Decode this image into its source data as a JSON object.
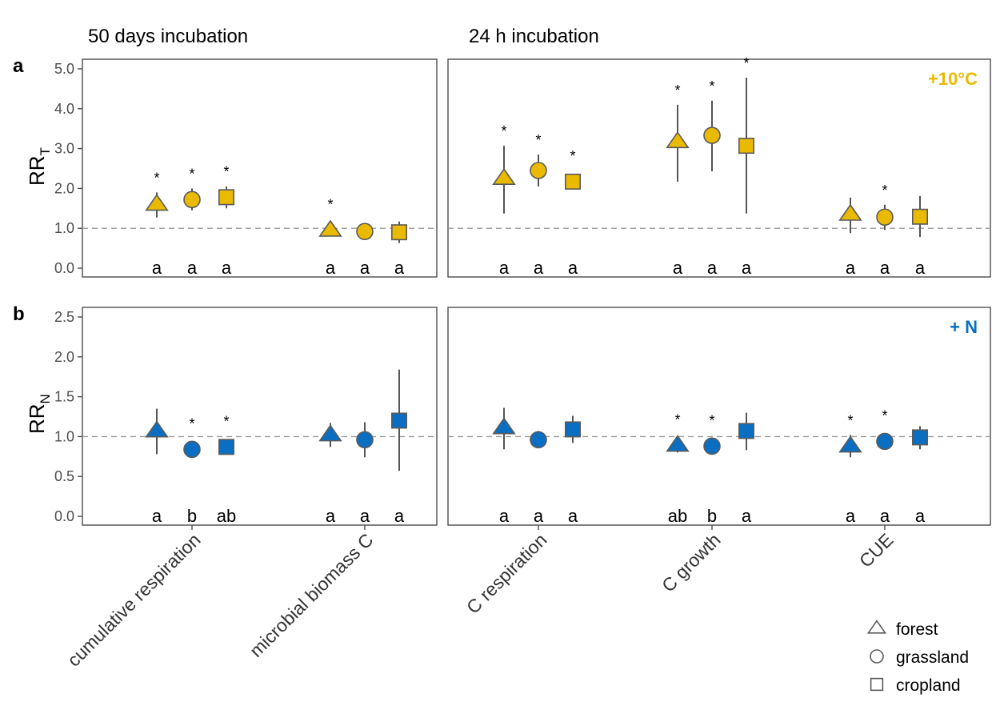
{
  "chart_data": [
    {
      "type": "scatter",
      "panel_label": "a",
      "ylabel_main": "RR",
      "ylabel_sub": "T",
      "treatment_label": "+10°C",
      "color": "#E9BA00",
      "ylim": [
        -0.2,
        5.2
      ],
      "yticks": [
        "0.0",
        "1.0",
        "2.0",
        "3.0",
        "4.0",
        "5.0"
      ],
      "ytick_values": [
        0,
        1,
        2,
        3,
        4,
        5
      ],
      "reference_line": 1.0,
      "groups": [
        "50 days incubation",
        "24 h incubation"
      ],
      "categories": [
        "cumulative respiration",
        "microbial biomass C",
        "C respiration",
        "C growth",
        "CUE"
      ],
      "category_group": [
        0,
        0,
        1,
        1,
        1
      ],
      "series": [
        {
          "name": "forest",
          "shape": "triangle",
          "values": [
            1.6,
            0.95,
            2.25,
            3.17,
            1.35
          ],
          "lower": [
            1.27,
            0.95,
            1.37,
            2.17,
            0.88
          ],
          "upper": [
            1.9,
            0.95,
            3.07,
            4.1,
            1.77
          ],
          "significant": [
            true,
            true,
            true,
            true,
            false
          ],
          "letters": [
            "a",
            "a",
            "a",
            "a",
            "a"
          ]
        },
        {
          "name": "grassland",
          "shape": "circle",
          "values": [
            1.72,
            0.92,
            2.45,
            3.33,
            1.28
          ],
          "lower": [
            1.45,
            0.75,
            2.05,
            2.43,
            0.96
          ],
          "upper": [
            2.0,
            1.1,
            2.85,
            4.2,
            1.59
          ],
          "significant": [
            true,
            false,
            true,
            true,
            true
          ],
          "letters": [
            "a",
            "a",
            "a",
            "a",
            "a"
          ]
        },
        {
          "name": "cropland",
          "shape": "square",
          "values": [
            1.78,
            0.9,
            2.17,
            3.07,
            1.29
          ],
          "lower": [
            1.5,
            0.63,
            1.99,
            1.37,
            0.78
          ],
          "upper": [
            2.05,
            1.17,
            2.37,
            4.78,
            1.81
          ],
          "significant": [
            true,
            false,
            true,
            true,
            false
          ],
          "letters": [
            "a",
            "a",
            "a",
            "a",
            "a"
          ]
        }
      ]
    },
    {
      "type": "scatter",
      "panel_label": "b",
      "ylabel_main": "RR",
      "ylabel_sub": "N",
      "treatment_label": "+ N",
      "color": "#0A6FC2",
      "ylim": [
        -0.1,
        2.6
      ],
      "yticks": [
        "0.0",
        "0.5",
        "1.0",
        "1.5",
        "2.0",
        "2.5"
      ],
      "ytick_values": [
        0,
        0.5,
        1,
        1.5,
        2,
        2.5
      ],
      "reference_line": 1.0,
      "categories": [
        "cumulative respiration",
        "microbial biomass C",
        "C respiration",
        "C growth",
        "CUE"
      ],
      "series": [
        {
          "name": "forest",
          "shape": "triangle",
          "values": [
            1.07,
            1.02,
            1.11,
            0.89,
            0.88
          ],
          "lower": [
            0.78,
            0.87,
            0.84,
            0.8,
            0.74
          ],
          "upper": [
            1.35,
            1.17,
            1.36,
            0.92,
            1.02
          ],
          "significant": [
            false,
            false,
            false,
            true,
            true
          ],
          "letters": [
            "a",
            "a",
            "a",
            "ab",
            "a"
          ]
        },
        {
          "name": "grassland",
          "shape": "circle",
          "values": [
            0.84,
            0.96,
            0.96,
            0.88,
            0.94
          ],
          "lower": [
            0.74,
            0.74,
            0.87,
            0.84,
            0.92
          ],
          "upper": [
            0.93,
            1.18,
            1.07,
            0.9,
            0.96
          ],
          "significant": [
            true,
            false,
            false,
            true,
            true
          ],
          "letters": [
            "b",
            "a",
            "a",
            "b",
            "a"
          ]
        },
        {
          "name": "cropland",
          "shape": "square",
          "values": [
            0.87,
            1.2,
            1.09,
            1.07,
            0.99
          ],
          "lower": [
            0.82,
            0.57,
            0.92,
            0.83,
            0.84
          ],
          "upper": [
            0.9,
            1.84,
            1.26,
            1.3,
            1.13
          ],
          "significant": [
            true,
            false,
            false,
            false,
            false
          ],
          "letters": [
            "ab",
            "a",
            "a",
            "a",
            "a"
          ]
        }
      ]
    }
  ],
  "significance_symbol": "*",
  "legend": [
    {
      "label": "forest",
      "shape": "triangle"
    },
    {
      "label": "grassland",
      "shape": "circle"
    },
    {
      "label": "cropland",
      "shape": "square"
    }
  ]
}
